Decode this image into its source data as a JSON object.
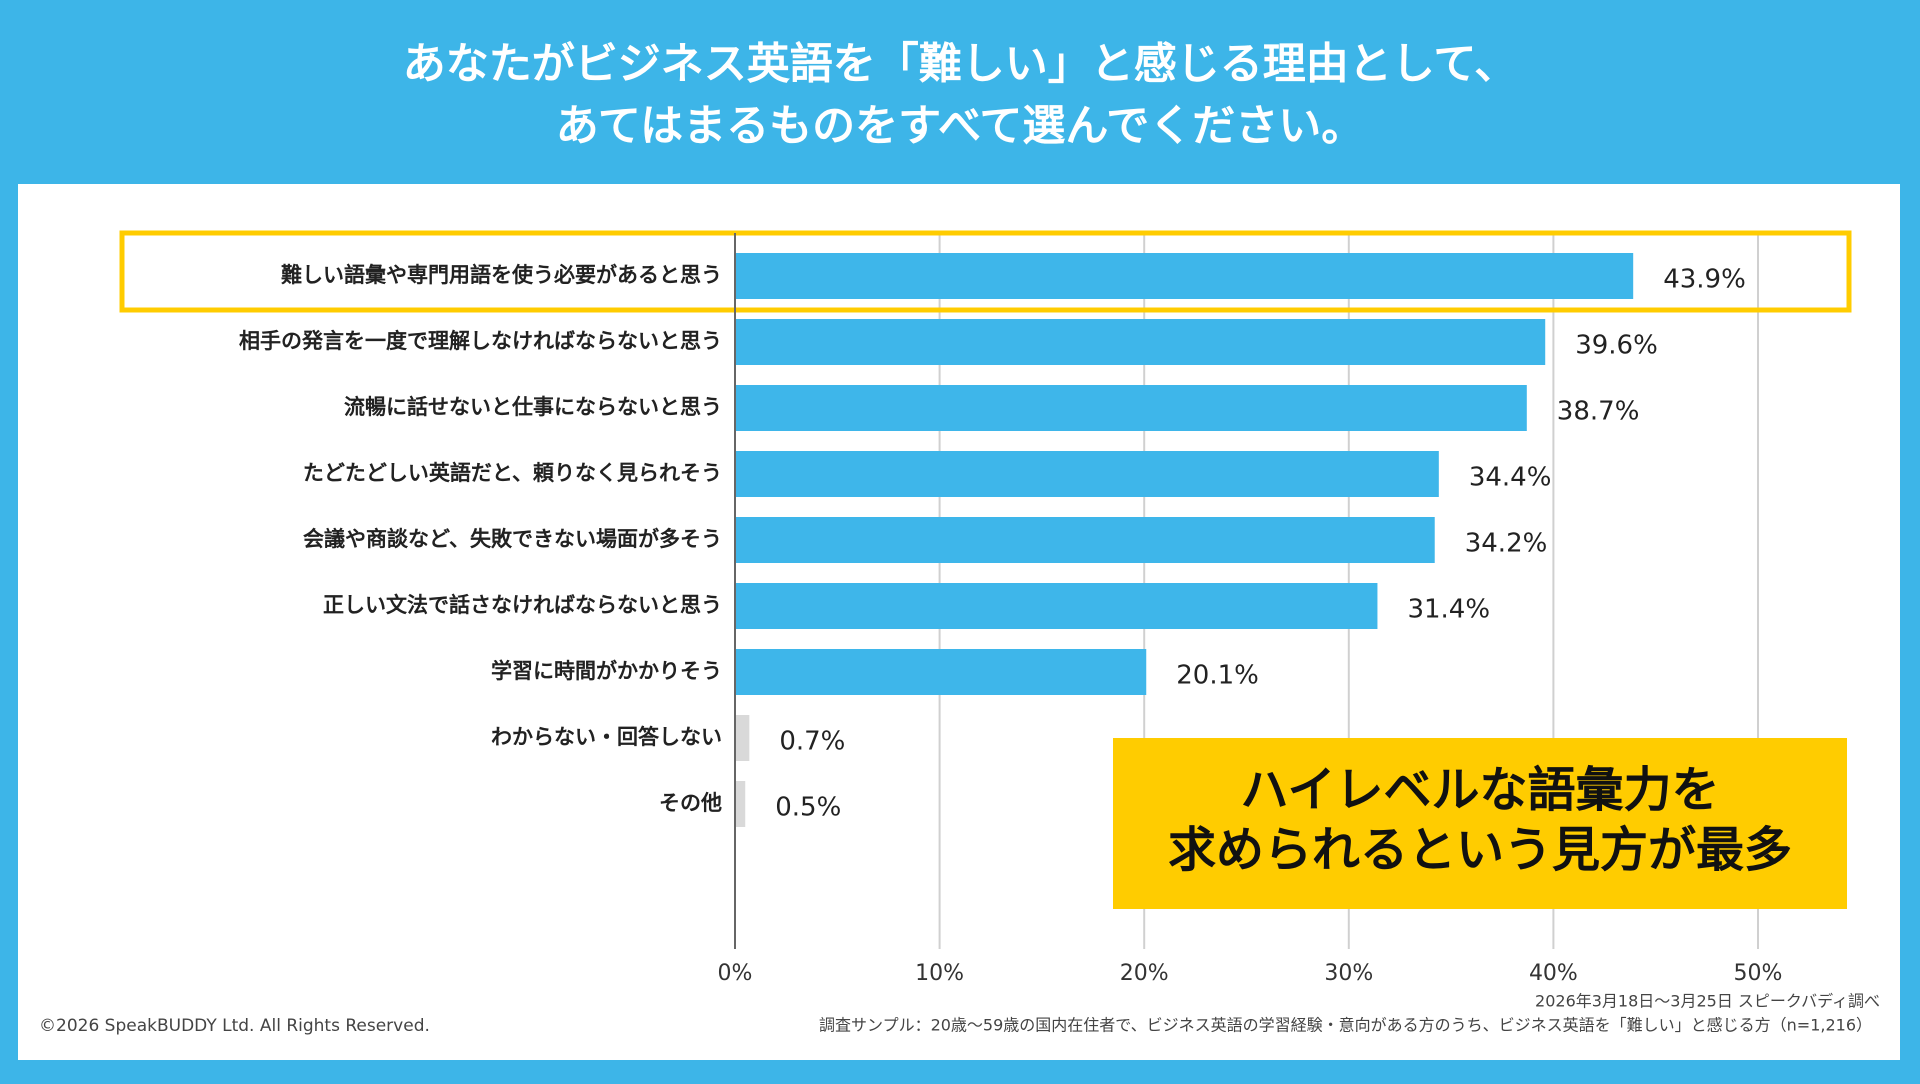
{
  "chart_data": {
    "type": "barh",
    "title": [
      "あなたがビジネス英語を「難しい」と感じる理由として、",
      "あてはまるものをすべて選んでください。"
    ],
    "categories": [
      "難しい語彙や専門用語を使う必要があると思う",
      "相手の発言を一度で理解しなければならないと思う",
      "流暢に話せないと仕事にならないと思う",
      "たどたどしい英語だと、頼りなく見られそう",
      "会議や商談など、失敗できない場面が多そう",
      "正しい文法で話さなければならないと思う",
      "学習に時間がかかりそう",
      "わからない・回答しない",
      "その他"
    ],
    "values": [
      43.9,
      39.6,
      38.7,
      34.4,
      34.2,
      31.4,
      20.1,
      0.7,
      0.5
    ],
    "value_labels": [
      "43.9%",
      "39.6%",
      "38.7%",
      "34.4%",
      "34.2%",
      "31.4%",
      "20.1%",
      "0.7%",
      "0.5%"
    ],
    "colors": [
      "#3eb6ea",
      "#3eb6ea",
      "#3eb6ea",
      "#3eb6ea",
      "#3eb6ea",
      "#3eb6ea",
      "#3eb6ea",
      "#d9d9d9",
      "#d9d9d9"
    ],
    "xlim": [
      0,
      50
    ],
    "xticks": [
      {
        "value": 0,
        "label": "0%"
      },
      {
        "value": 10,
        "label": "10%"
      },
      {
        "value": 20,
        "label": "20%"
      },
      {
        "value": 30,
        "label": "30%"
      },
      {
        "value": 40,
        "label": "40%"
      },
      {
        "value": 50,
        "label": "50%"
      }
    ],
    "grid": true,
    "callout": [
      "ハイレベルな語彙力を",
      "求められるという見方が最多"
    ],
    "source": "2026年3月18日〜3月25日 スピークバディ調べ",
    "sample_note": "調査サンプル：20歳〜59歳の国内在住者で、ビジネス英語の学習経験・意向がある方のうち、ビジネス英語を「難しい」と感じる方（n=1,216）",
    "copyright": "©2026 SpeakBUDDY Ltd. All Rights Reserved."
  }
}
